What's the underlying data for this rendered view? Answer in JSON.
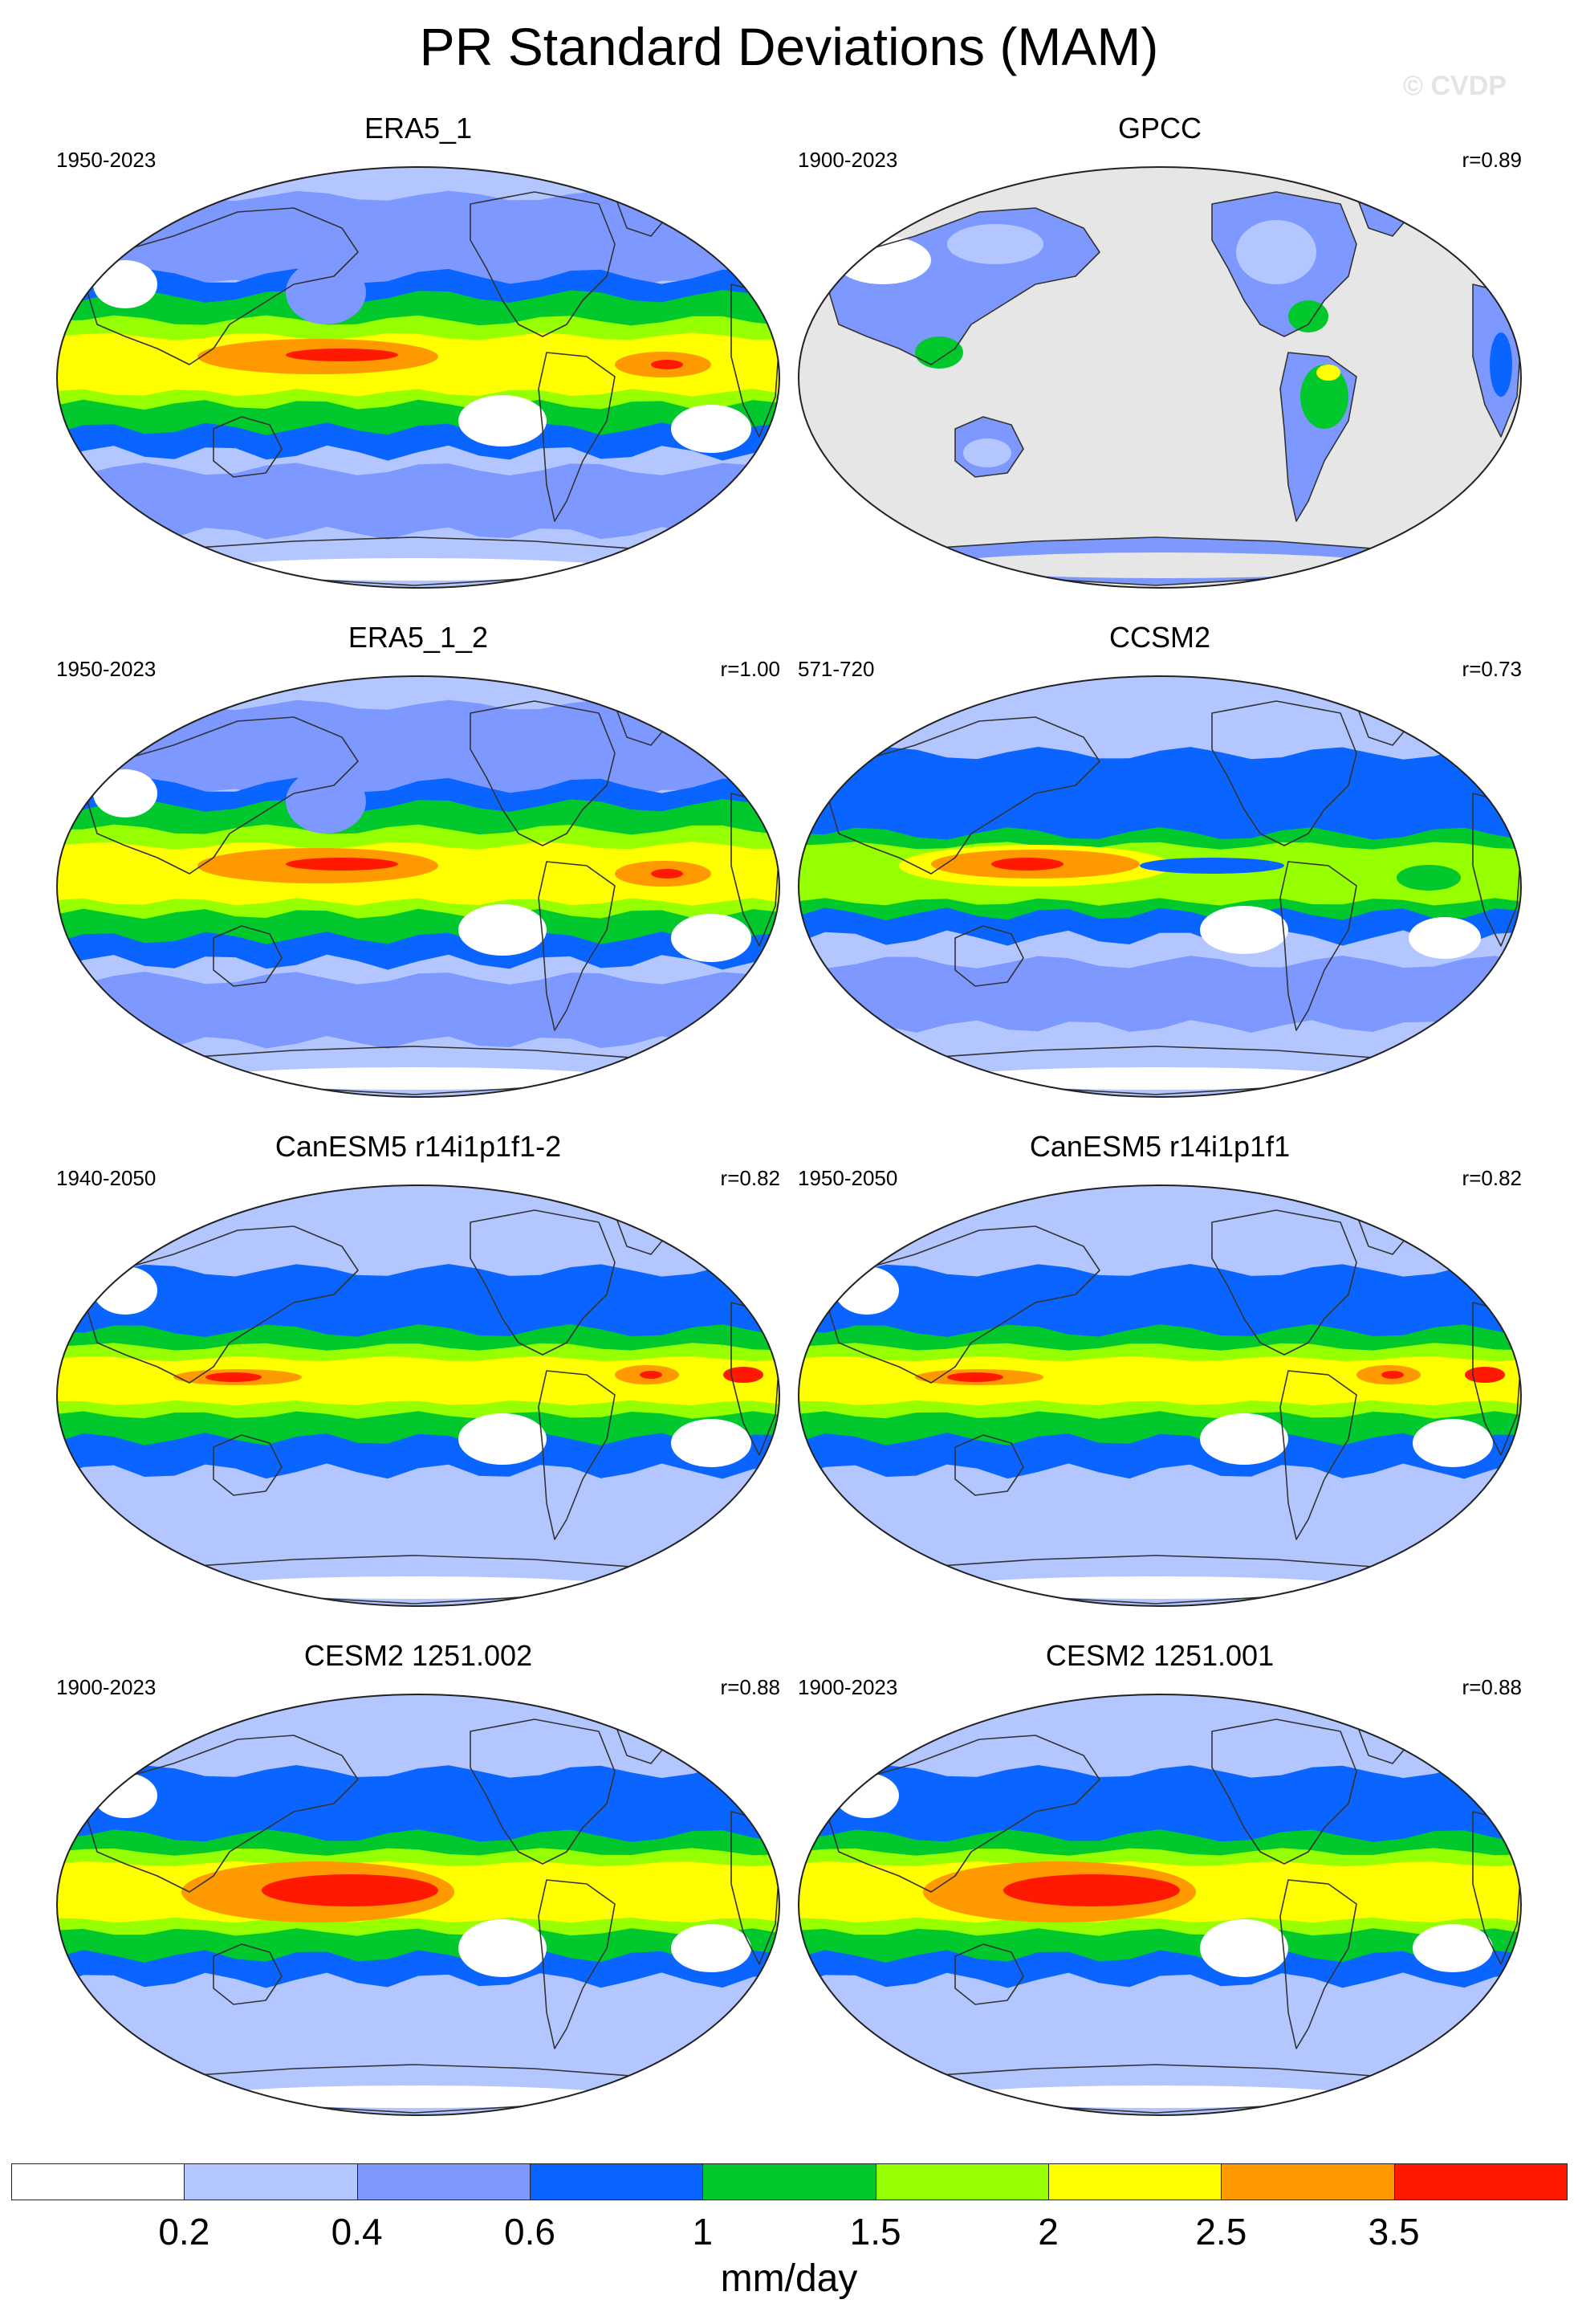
{
  "title": "PR Standard Deviations (MAM)",
  "watermark": "© CVDP",
  "panels": [
    {
      "title": "ERA5_1",
      "years": "1950-2023",
      "r": "",
      "pattern": "obs"
    },
    {
      "title": "GPCC",
      "years": "1900-2023",
      "r": "r=0.89",
      "pattern": "land"
    },
    {
      "title": "ERA5_1_2",
      "years": "1950-2023",
      "r": "r=1.00",
      "pattern": "obs"
    },
    {
      "title": "CCSM2",
      "years": "571-720",
      "r": "r=0.73",
      "pattern": "ccsm"
    },
    {
      "title": "CanESM5 r14i1p1f1-2",
      "years": "1940-2050",
      "r": "r=0.82",
      "pattern": "canesm"
    },
    {
      "title": "CanESM5 r14i1p1f1",
      "years": "1950-2050",
      "r": "r=0.82",
      "pattern": "canesm"
    },
    {
      "title": "CESM2 1251.002",
      "years": "1900-2023",
      "r": "r=0.88",
      "pattern": "cesm"
    },
    {
      "title": "CESM2 1251.001",
      "years": "1900-2023",
      "r": "r=0.88",
      "pattern": "cesm"
    }
  ],
  "colorbar": {
    "labels": [
      "0.2",
      "0.4",
      "0.6",
      "1",
      "1.5",
      "2",
      "2.5",
      "3.5"
    ],
    "colors": [
      "#ffffff",
      "#b4c6ff",
      "#7d98ff",
      "#0a64ff",
      "#00c82d",
      "#96ff00",
      "#ffff00",
      "#ff9900",
      "#ff1900"
    ],
    "units": "mm/day"
  },
  "missing_color": "#e6e6e6"
}
